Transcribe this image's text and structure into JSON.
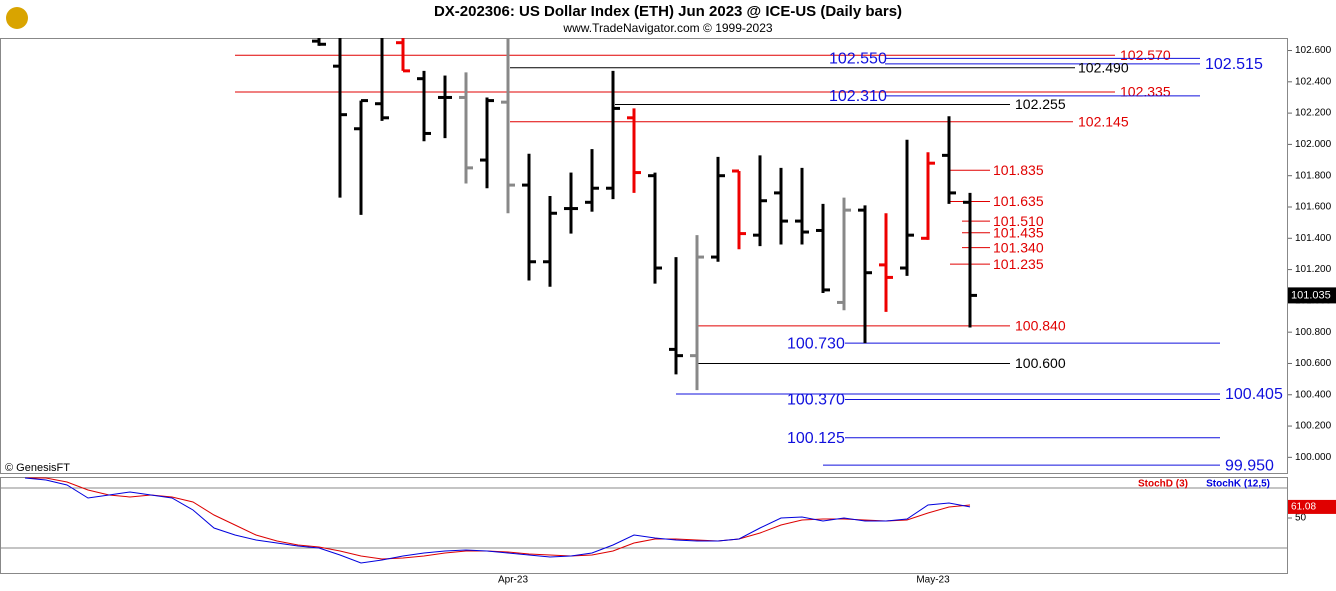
{
  "chart_data": [
    {
      "type": "ohlc",
      "title": "DX-202306:  US Dollar Index (ETH) Jun 2023 @ ICE-US  (Daily bars)",
      "subtitle": "www.TradeNavigator.com © 1999-2023",
      "annotation": "© GenesisFT",
      "categories": [
        null,
        null,
        null,
        null,
        null,
        null,
        null,
        null,
        null,
        null,
        null,
        null,
        null,
        null,
        null,
        null,
        null,
        null,
        null,
        null,
        null,
        null,
        null,
        "Apr-23",
        null,
        null,
        null,
        null,
        null,
        null,
        null,
        null,
        null,
        null,
        null,
        null,
        null,
        null,
        null,
        null,
        null,
        null,
        null,
        "May-23",
        null,
        null
      ],
      "open": [
        null,
        null,
        null,
        null,
        null,
        null,
        null,
        null,
        null,
        null,
        null,
        null,
        null,
        null,
        102.66,
        102.5,
        102.1,
        102.26,
        102.65,
        102.42,
        102.3,
        102.3,
        101.9,
        102.27,
        101.74,
        101.25,
        101.59,
        101.63,
        101.72,
        102.17,
        101.8,
        100.69,
        100.65,
        101.28,
        101.83,
        101.42,
        101.69,
        101.51,
        101.45,
        100.99,
        101.58,
        101.23,
        101.21,
        101.4,
        101.93,
        101.63
      ],
      "high": [
        null,
        null,
        null,
        null,
        null,
        null,
        null,
        null,
        null,
        null,
        null,
        null,
        null,
        null,
        102.68,
        102.68,
        102.28,
        102.68,
        102.68,
        102.47,
        102.44,
        102.46,
        102.3,
        102.68,
        101.94,
        101.67,
        101.82,
        101.97,
        102.47,
        102.23,
        101.82,
        101.28,
        101.42,
        101.92,
        101.83,
        101.93,
        101.85,
        101.85,
        101.62,
        101.66,
        101.61,
        101.56,
        102.03,
        101.95,
        102.18,
        101.69
      ],
      "low": [
        null,
        null,
        null,
        null,
        null,
        null,
        null,
        null,
        null,
        null,
        null,
        null,
        null,
        null,
        102.63,
        101.66,
        101.55,
        102.15,
        102.47,
        102.02,
        102.04,
        101.75,
        101.72,
        101.56,
        101.13,
        101.09,
        101.43,
        101.57,
        101.65,
        101.69,
        101.11,
        100.53,
        100.43,
        101.25,
        101.33,
        101.35,
        101.36,
        101.36,
        101.05,
        100.94,
        100.73,
        100.93,
        101.16,
        101.39,
        101.62,
        100.83
      ],
      "close": [
        null,
        null,
        null,
        null,
        null,
        null,
        null,
        null,
        null,
        null,
        null,
        null,
        null,
        null,
        102.64,
        102.19,
        102.28,
        102.17,
        102.47,
        102.07,
        102.3,
        101.85,
        102.28,
        101.74,
        101.25,
        101.56,
        101.59,
        101.72,
        102.23,
        101.82,
        101.21,
        100.65,
        101.28,
        101.8,
        101.43,
        101.64,
        101.51,
        101.44,
        101.07,
        101.58,
        101.18,
        101.15,
        101.42,
        101.88,
        101.69,
        101.035
      ],
      "bar_colors": [
        null,
        null,
        null,
        null,
        null,
        null,
        null,
        null,
        null,
        null,
        null,
        null,
        null,
        null,
        "#000000",
        "#000000",
        "#000000",
        "#000000",
        "#ee0000",
        "#000000",
        "#000000",
        "#888888",
        "#000000",
        "#888888",
        "#000000",
        "#000000",
        "#000000",
        "#000000",
        "#000000",
        "#ee0000",
        "#000000",
        "#000000",
        "#888888",
        "#000000",
        "#ee0000",
        "#000000",
        "#000000",
        "#000000",
        "#000000",
        "#888888",
        "#000000",
        "#ee0000",
        "#000000",
        "#ee0000",
        "#000000",
        "#000000"
      ],
      "ylim": [
        99.9,
        102.68
      ],
      "yticks": [
        {
          "value": 102.6,
          "label": "102.600"
        },
        {
          "value": 102.4,
          "label": "102.400"
        },
        {
          "value": 102.2,
          "label": "102.200"
        },
        {
          "value": 102.0,
          "label": "102.000"
        },
        {
          "value": 101.8,
          "label": "101.800"
        },
        {
          "value": 101.6,
          "label": "101.600"
        },
        {
          "value": 101.4,
          "label": "101.400"
        },
        {
          "value": 101.2,
          "label": "101.200"
        },
        {
          "value": 101.0,
          "label": "101.000"
        },
        {
          "value": 100.8,
          "label": "100.800"
        },
        {
          "value": 100.6,
          "label": "100.600"
        },
        {
          "value": 100.4,
          "label": "100.400"
        },
        {
          "value": 100.2,
          "label": "100.200"
        },
        {
          "value": 100.0,
          "label": "100.000"
        }
      ],
      "levels": {
        "values": [
          102.57,
          102.55,
          102.515,
          102.49,
          102.335,
          102.31,
          102.255,
          102.145,
          101.835,
          101.635,
          101.51,
          101.435,
          101.34,
          101.235,
          100.84,
          100.73,
          100.6,
          100.405,
          100.37,
          100.125,
          99.95
        ],
        "value_labels": [
          "102.570",
          "102.550",
          "102.515",
          "102.490",
          "102.335",
          "102.310",
          "102.255",
          "102.145",
          "101.835",
          "101.635",
          "101.510",
          "101.435",
          "101.340",
          "101.235",
          "100.840",
          "100.730",
          "100.600",
          "100.405",
          "100.370",
          "100.125",
          "99.950"
        ],
        "colors": [
          "#e00000",
          "#1010dd",
          "#1010dd",
          "#000000",
          "#e00000",
          "#1010dd",
          "#000000",
          "#e00000",
          "#e00000",
          "#e00000",
          "#e00000",
          "#e00000",
          "#e00000",
          "#e00000",
          "#e00000",
          "#1010dd",
          "#000000",
          "#1010dd",
          "#1010dd",
          "#1010dd",
          "#1010dd"
        ]
      }
    },
    {
      "type": "line",
      "series": [
        {
          "name": "StochD (3)",
          "color": "#dd0000",
          "values": [
            90,
            90,
            86,
            78,
            73,
            71,
            73,
            71,
            66,
            53,
            43,
            33,
            27,
            23,
            21,
            17,
            12,
            9,
            10,
            12,
            15,
            17,
            17,
            16,
            14,
            13,
            12,
            13,
            17,
            25,
            29,
            29,
            28,
            27,
            29,
            35,
            43,
            48,
            49,
            49,
            48,
            47,
            48,
            55,
            61,
            63
          ]
        },
        {
          "name": "StochK (12,5)",
          "color": "#0000dd",
          "values": [
            90,
            88,
            83,
            70,
            73,
            76,
            73,
            70,
            58,
            40,
            33,
            28,
            25,
            22,
            20,
            13,
            5,
            8,
            12,
            15,
            17,
            18,
            17,
            15,
            13,
            11,
            12,
            15,
            23,
            33,
            30,
            28,
            27,
            27,
            29,
            40,
            50,
            51,
            47,
            50,
            47,
            47,
            49,
            63,
            65,
            61.08
          ]
        }
      ],
      "ylim": [
        -5,
        90
      ],
      "yticks": [
        50
      ],
      "guides": [
        20,
        80
      ]
    }
  ]
}
